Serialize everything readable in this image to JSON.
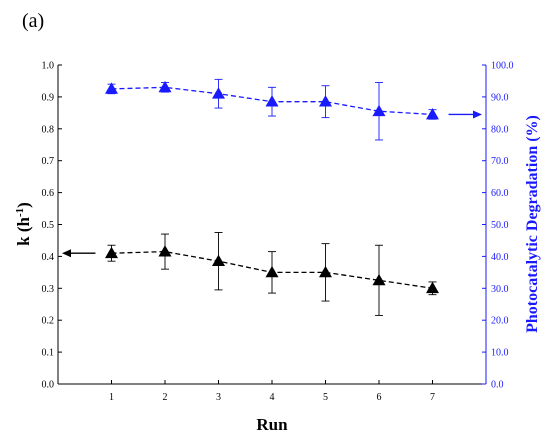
{
  "panel_label": "(a)",
  "chart_data": {
    "type": "line",
    "x": [
      1,
      2,
      3,
      4,
      5,
      6,
      7
    ],
    "xlabel": "Run",
    "xticks": [
      "1",
      "2",
      "3",
      "4",
      "5",
      "6",
      "7"
    ],
    "xlim": [
      0,
      8
    ],
    "left_axis": {
      "label_main": "k (h",
      "label_sup": "-1",
      "label_end": ")",
      "ylim": [
        0,
        1.0
      ],
      "ticks": [
        "0.0",
        "0.1",
        "0.2",
        "0.3",
        "0.4",
        "0.5",
        "0.6",
        "0.7",
        "0.8",
        "0.9",
        "1.0"
      ],
      "color": "#000000"
    },
    "right_axis": {
      "label": "Photocatalytic Degradation (%)",
      "ylim": [
        0,
        100
      ],
      "ticks": [
        "0.0",
        "10.0",
        "20.0",
        "30.0",
        "40.0",
        "50.0",
        "60.0",
        "70.0",
        "80.0",
        "90.0",
        "100.0"
      ],
      "color": "#1a1aff"
    },
    "series": [
      {
        "axis": "left",
        "marker": "triangle",
        "line": "dashed",
        "color": "#000000",
        "values": [
          0.41,
          0.415,
          0.385,
          0.35,
          0.35,
          0.325,
          0.3
        ],
        "error": [
          0.025,
          0.055,
          0.09,
          0.065,
          0.09,
          0.11,
          0.02
        ],
        "arrow": "left"
      },
      {
        "axis": "right",
        "marker": "triangle",
        "line": "dashed",
        "color": "#1a1aff",
        "values": [
          92.5,
          93.0,
          91.0,
          88.5,
          88.5,
          85.5,
          84.5
        ],
        "error": [
          1.5,
          1.5,
          4.5,
          4.5,
          5.0,
          9.0,
          1.5
        ],
        "arrow": "right"
      }
    ],
    "grid": false
  }
}
